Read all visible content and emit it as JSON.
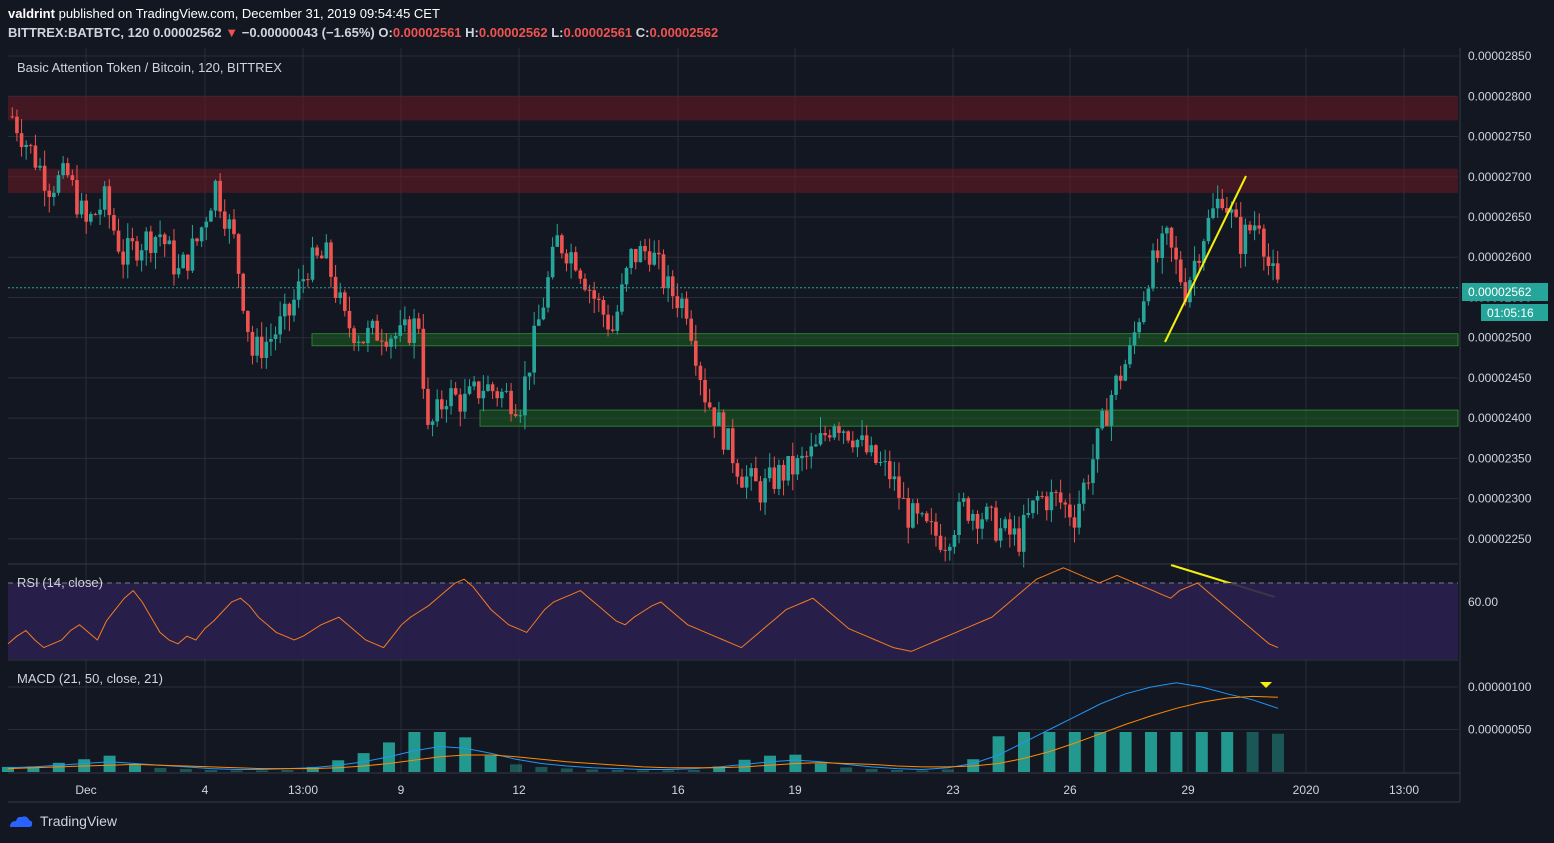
{
  "header": {
    "publisher": "valdrint",
    "published_text": "published on TradingView.com, December 31, 2019 09:54:45 CET",
    "symbol": "BITTREX:BATBTC, 120",
    "last": "0.00002562",
    "change": "−0.00000043 (−1.65%)",
    "o_label": "O:",
    "o_val": "0.00002561",
    "h_label": "H:",
    "h_val": "0.00002562",
    "l_label": "L:",
    "l_val": "0.00002561",
    "c_label": "C:",
    "c_val": "0.00002562"
  },
  "main_pane": {
    "title": "Basic Attention Token / Bitcoin, 120, BITTREX",
    "last_price_label": "0.00002562",
    "countdown_label": "01:05:16"
  },
  "rsi_pane": {
    "title": "RSI (14, close)",
    "axis_label": "60.00"
  },
  "macd_pane": {
    "title": "MACD (21, 50, close, 21)"
  },
  "brand": {
    "name": "TradingView"
  },
  "colors": {
    "background": "#131722",
    "up": "#26a69a",
    "down": "#ef5350",
    "resistance_zone": "#6b1a24",
    "support_zone": "#1b5e20",
    "trendline": "#f5f10a",
    "rsi_line": "#f57c20",
    "macd_line": "#2196f3",
    "signal_line": "#ff8a00",
    "last_price": "#26a69a",
    "rsi_band": "#2a1f4e"
  },
  "chart_data": [
    {
      "type": "candlestick",
      "title": "Basic Attention Token / Bitcoin, 120, BITTREX",
      "x_tick_labels": [
        "Dec",
        "4",
        "13:00",
        "9",
        "12",
        "16",
        "19",
        "23",
        "26",
        "29",
        "2020",
        "13:00"
      ],
      "y_tick_labels": [
        "0.00002850",
        "0.00002800",
        "0.00002750",
        "0.00002700",
        "0.00002650",
        "0.00002600",
        "0.00002550",
        "0.00002500",
        "0.00002450",
        "0.00002400",
        "0.00002350",
        "0.00002300",
        "0.00002250"
      ],
      "ylim": [
        2.22e-05,
        2.86e-05
      ],
      "close_path": [
        [
          0,
          2.775e-05
        ],
        [
          8,
          2.69e-05
        ],
        [
          12,
          2.7e-05
        ],
        [
          16,
          2.64e-05
        ],
        [
          20,
          2.67e-05
        ],
        [
          24,
          2.6e-05
        ],
        [
          28,
          2.62e-05
        ],
        [
          32,
          2.63e-05
        ],
        [
          36,
          2.58e-05
        ],
        [
          40,
          2.62e-05
        ],
        [
          44,
          2.69e-05
        ],
        [
          48,
          2.62e-05
        ],
        [
          52,
          2.48e-05
        ],
        [
          56,
          2.5e-05
        ],
        [
          60,
          2.53e-05
        ],
        [
          64,
          2.59e-05
        ],
        [
          68,
          2.6e-05
        ],
        [
          72,
          2.52e-05
        ],
        [
          76,
          2.5e-05
        ],
        [
          80,
          2.51e-05
        ],
        [
          84,
          2.5e-05
        ],
        [
          88,
          2.52e-05
        ],
        [
          90,
          2.38e-05
        ],
        [
          94,
          2.43e-05
        ],
        [
          98,
          2.42e-05
        ],
        [
          102,
          2.44e-05
        ],
        [
          106,
          2.43e-05
        ],
        [
          110,
          2.42e-05
        ],
        [
          114,
          2.52e-05
        ],
        [
          118,
          2.62e-05
        ],
        [
          122,
          2.6e-05
        ],
        [
          126,
          2.55e-05
        ],
        [
          130,
          2.51e-05
        ],
        [
          134,
          2.6e-05
        ],
        [
          138,
          2.61e-05
        ],
        [
          142,
          2.56e-05
        ],
        [
          146,
          2.54e-05
        ],
        [
          150,
          2.43e-05
        ],
        [
          154,
          2.38e-05
        ],
        [
          158,
          2.33e-05
        ],
        [
          162,
          2.31e-05
        ],
        [
          166,
          2.33e-05
        ],
        [
          170,
          2.34e-05
        ],
        [
          174,
          2.36e-05
        ],
        [
          178,
          2.4e-05
        ],
        [
          182,
          2.38e-05
        ],
        [
          186,
          2.35e-05
        ],
        [
          190,
          2.33e-05
        ],
        [
          194,
          2.28e-05
        ],
        [
          198,
          2.26e-05
        ],
        [
          202,
          2.25e-05
        ],
        [
          206,
          2.29e-05
        ],
        [
          210,
          2.28e-05
        ],
        [
          214,
          2.26e-05
        ],
        [
          218,
          2.25e-05
        ],
        [
          222,
          2.3e-05
        ],
        [
          226,
          2.3e-05
        ],
        [
          230,
          2.28e-05
        ],
        [
          234,
          2.35e-05
        ],
        [
          238,
          2.43e-05
        ],
        [
          242,
          2.48e-05
        ],
        [
          246,
          2.58e-05
        ],
        [
          250,
          2.62e-05
        ],
        [
          254,
          2.56e-05
        ],
        [
          258,
          2.63e-05
        ],
        [
          262,
          2.68e-05
        ],
        [
          266,
          2.62e-05
        ],
        [
          270,
          2.65e-05
        ],
        [
          272,
          2.59e-05
        ],
        [
          274,
          2.56e-05
        ]
      ],
      "n_candles": 275,
      "zones": [
        {
          "kind": "resistance",
          "from": 2.77e-05,
          "to": 2.8e-05
        },
        {
          "kind": "resistance",
          "from": 2.68e-05,
          "to": 2.71e-05
        },
        {
          "kind": "support",
          "from": 2.49e-05,
          "to": 2.505e-05
        },
        {
          "kind": "support",
          "from": 2.39e-05,
          "to": 2.41e-05
        }
      ],
      "last_price": 2.562e-05
    },
    {
      "type": "line",
      "title": "RSI (14, close)",
      "y_tick_labels": [
        "60.00"
      ],
      "ylim": [
        30,
        80
      ],
      "band": [
        30,
        70
      ],
      "series": [
        {
          "values": [
            38,
            42,
            45,
            40,
            36,
            38,
            40,
            45,
            48,
            44,
            40,
            50,
            56,
            62,
            66,
            60,
            52,
            44,
            40,
            38,
            42,
            40,
            46,
            50,
            55,
            60,
            62,
            58,
            52,
            48,
            44,
            42,
            40,
            42,
            45,
            48,
            50,
            52,
            48,
            44,
            40,
            38,
            36,
            42,
            48,
            52,
            55,
            58,
            62,
            66,
            70,
            72,
            68,
            62,
            56,
            52,
            48,
            46,
            44,
            50,
            56,
            60,
            62,
            64,
            66,
            62,
            58,
            54,
            50,
            48,
            52,
            55,
            58,
            60,
            56,
            52,
            48,
            46,
            44,
            42,
            40,
            38,
            36,
            40,
            44,
            48,
            52,
            56,
            58,
            60,
            62,
            58,
            54,
            50,
            46,
            44,
            42,
            40,
            38,
            36,
            35,
            34,
            36,
            38,
            40,
            42,
            44,
            46,
            48,
            50,
            52,
            56,
            60,
            64,
            68,
            72,
            74,
            76,
            78,
            76,
            74,
            72,
            70,
            72,
            74,
            72,
            70,
            68,
            66,
            64,
            62,
            66,
            68,
            70,
            66,
            62,
            58,
            54,
            50,
            46,
            42,
            38,
            36
          ]
        }
      ]
    },
    {
      "type": "line",
      "title": "MACD (21, 50, close, 21)",
      "y_tick_labels": [
        "0.00000100",
        "0.00000050"
      ],
      "ylim": [
        0.0,
        1.2e-06
      ],
      "series": [
        {
          "values": [
            5e-08,
            6e-08,
            8e-08,
            1e-07,
            1.2e-07,
            1e-07,
            8e-08,
            6e-08,
            4e-08,
            3e-08,
            3e-08,
            4e-08,
            5e-08,
            8e-08,
            1.2e-07,
            1.8e-07,
            2.5e-07,
            3e-07,
            2.8e-07,
            2.2e-07,
            1.5e-07,
            1e-07,
            7e-08,
            5e-08,
            4e-08,
            3e-08,
            3e-08,
            4e-08,
            6e-08,
            9e-08,
            1.2e-07,
            1.4e-07,
            1.2e-07,
            9e-08,
            6e-08,
            4e-08,
            3e-08,
            5e-08,
            1e-07,
            2e-07,
            3.5e-07,
            5e-07,
            6.5e-07,
            8e-07,
            9.2e-07,
            1e-06,
            1.05e-06,
            1e-06,
            9.2e-07,
            8.5e-07,
            7.5e-07
          ]
        },
        {
          "values": [
            4e-08,
            5e-08,
            6e-08,
            7e-08,
            8e-08,
            9e-08,
            8e-08,
            7e-08,
            6e-08,
            5e-08,
            4e-08,
            4e-08,
            4e-08,
            5e-08,
            7e-08,
            1e-07,
            1.4e-07,
            1.8e-07,
            2e-07,
            2e-07,
            1.8e-07,
            1.5e-07,
            1.2e-07,
            1e-07,
            8e-08,
            6e-08,
            5e-08,
            5e-08,
            5e-08,
            6e-08,
            8e-08,
            1e-07,
            1.1e-07,
            1e-07,
            9e-08,
            7e-08,
            6e-08,
            6e-08,
            7e-08,
            1e-07,
            1.6e-07,
            2.4e-07,
            3.4e-07,
            4.5e-07,
            5.6e-07,
            6.6e-07,
            7.5e-07,
            8.2e-07,
            8.7e-07,
            8.9e-07,
            8.8e-07
          ]
        }
      ]
    }
  ]
}
